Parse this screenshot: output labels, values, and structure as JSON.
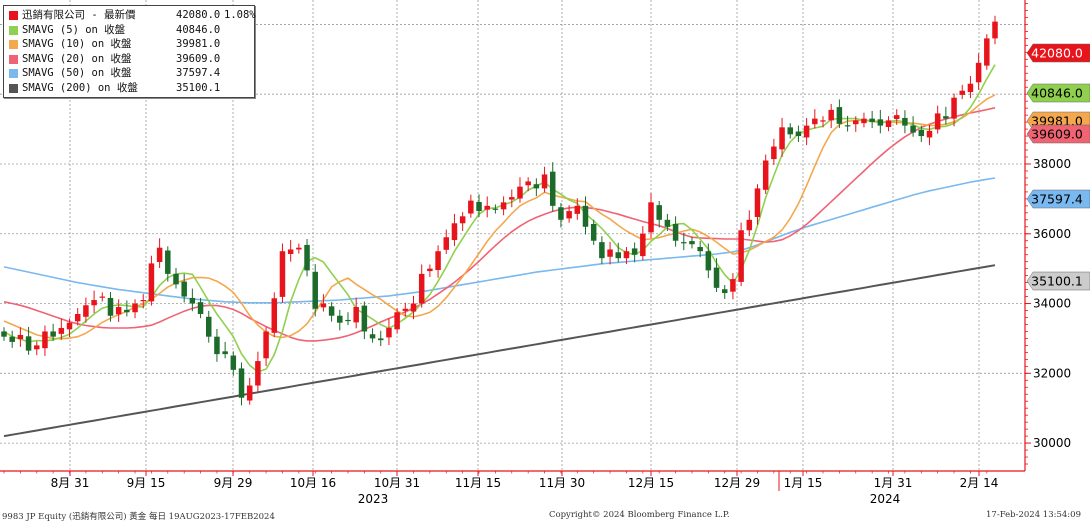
{
  "legend": {
    "title_name": "迅銷有限公司 - 最新價",
    "title_value": "42080.0",
    "title_change": "1.08%",
    "items": [
      {
        "name": "SMAVG (5)  on 收盤",
        "value": "40846.0",
        "color": "#8fd14f"
      },
      {
        "name": "SMAVG (10)  on 收盤",
        "value": "39981.0",
        "color": "#f4a84e"
      },
      {
        "name": "SMAVG (20)  on 收盤",
        "value": "39609.0",
        "color": "#f06373"
      },
      {
        "name": "SMAVG (50)  on 收盤",
        "value": "37597.4",
        "color": "#7ab8f0"
      },
      {
        "name": "SMAVG (200)  on 收盤",
        "value": "35100.1",
        "color": "#555555"
      }
    ]
  },
  "footer": {
    "left": "9983 JP Equity (迅銷有限公司) 黃金  每日 19AUG2023-17FEB2024",
    "center": "Copyright© 2024 Bloomberg Finance L.P.",
    "right": "17-Feb-2024  13:54:09"
  },
  "chart_data": {
    "type": "candlestick",
    "title": "",
    "x_tick_labels": [
      "8月 31",
      "9月 15",
      "9月 29",
      "10月 16",
      "10月 31",
      "11月 15",
      "11月 30",
      "12月 15",
      "12月 29",
      "1月 15",
      "1月 31",
      "2月 14"
    ],
    "year_labels": [
      "2023",
      "2024"
    ],
    "y_ticks": [
      30000,
      32000,
      34000,
      36000,
      38000
    ],
    "ylim": [
      29200,
      42700
    ],
    "y_axis_side": "right",
    "grid": true,
    "up_color": "#e8141c",
    "down_color": "#1c6b2a",
    "price_tags": [
      {
        "label": "42080.0",
        "value": 42080,
        "color": "#e8141c",
        "text_color": "#ffffff"
      },
      {
        "label": "40846.0",
        "value": 40846,
        "color": "#8fd14f",
        "text_color": "#000000"
      },
      {
        "label": "39981.0",
        "value": 39981,
        "color": "#f4a84e",
        "text_color": "#000000"
      },
      {
        "label": "39609.0",
        "value": 39609,
        "color": "#f06373",
        "text_color": "#000000"
      },
      {
        "label": "37597.4",
        "value": 37597.4,
        "color": "#7ab8f0",
        "text_color": "#000000"
      },
      {
        "label": "35100.1",
        "value": 35100.1,
        "color": "#cccccc",
        "text_color": "#000000"
      }
    ],
    "close": [
      33050,
      32900,
      33100,
      32650,
      32800,
      33200,
      33050,
      33300,
      33450,
      33700,
      33950,
      34100,
      34200,
      33650,
      33900,
      33750,
      34000,
      34100,
      35150,
      35600,
      34850,
      34550,
      34200,
      34000,
      33700,
      33050,
      32550,
      32550,
      32100,
      31300,
      31650,
      32350,
      33200,
      34150,
      35500,
      35550,
      35600,
      34950,
      33850,
      34000,
      33650,
      33450,
      33500,
      33900,
      33200,
      33000,
      32950,
      33300,
      33750,
      33850,
      34000,
      34850,
      35000,
      35500,
      35900,
      36300,
      36500,
      36950,
      36650,
      36800,
      36700,
      36900,
      37050,
      37350,
      37500,
      37300,
      37700,
      36800,
      36400,
      36650,
      36800,
      36200,
      35800,
      35300,
      35550,
      35300,
      35500,
      35400,
      36000,
      36900,
      36400,
      36200,
      35800,
      35750,
      35700,
      35500,
      34950,
      34450,
      34300,
      34700,
      36100,
      36400,
      37300,
      38100,
      38500,
      39050,
      38850,
      38800,
      39100,
      39300,
      39250,
      39550,
      39150,
      39100,
      39250,
      39300,
      39200,
      39100,
      39250,
      39400,
      39100,
      38900,
      38800,
      38950,
      39450,
      39300,
      39900,
      40100,
      40300,
      40900,
      41600,
      42080
    ],
    "sma_5": [
      33200,
      33050,
      32980,
      32900,
      32940,
      32930,
      32960,
      33030,
      33120,
      33300,
      33500,
      33700,
      33870,
      33930,
      33960,
      33940,
      33900,
      33910,
      34190,
      34520,
      34740,
      34850,
      34870,
      34840,
      34460,
      34060,
      33700,
      33380,
      33050,
      32560,
      32230,
      32040,
      32120,
      32540,
      33210,
      34060,
      34690,
      35210,
      35310,
      35190,
      34870,
      34560,
      34250,
      33850,
      33700,
      33550,
      33400,
      33290,
      33420,
      33580,
      33760,
      34000,
      34260,
      34640,
      35050,
      35500,
      35860,
      36230,
      36560,
      36730,
      36740,
      36830,
      36910,
      37050,
      37250,
      37370,
      37480,
      37280,
      37130,
      36970,
      36870,
      36570,
      36370,
      36150,
      35890,
      35600,
      35460,
      35400,
      35530,
      35780,
      35970,
      36200,
      36280,
      36290,
      36110,
      35840,
      35560,
      35160,
      34830,
      34580,
      34970,
      35530,
      36240,
      37040,
      37670,
      38270,
      38630,
      38870,
      38970,
      39030,
      39080,
      39280,
      39300,
      39300,
      39300,
      39250,
      39230,
      39180,
      39210,
      39250,
      39200,
      39120,
      39020,
      38990,
      39060,
      39080,
      39160,
      39340,
      39620,
      40000,
      40440,
      40846
    ],
    "sma_10": [
      33500,
      33400,
      33300,
      33200,
      33100,
      33050,
      33000,
      32990,
      33010,
      33050,
      33150,
      33300,
      33460,
      33580,
      33680,
      33780,
      33900,
      33990,
      34120,
      34290,
      34470,
      34590,
      34670,
      34740,
      34750,
      34730,
      34640,
      34500,
      34320,
      34010,
      33650,
      33380,
      33180,
      33060,
      33030,
      33080,
      33210,
      33420,
      33760,
      34110,
      34480,
      34630,
      34730,
      34550,
      34400,
      34250,
      34120,
      33950,
      33790,
      33650,
      33620,
      33670,
      33750,
      33920,
      34170,
      34470,
      34770,
      35100,
      35440,
      35780,
      36080,
      36320,
      36580,
      36800,
      36930,
      37030,
      37190,
      37110,
      37050,
      37000,
      36940,
      36920,
      36730,
      36560,
      36420,
      36240,
      36080,
      35950,
      35830,
      35850,
      35890,
      35960,
      36010,
      36080,
      36130,
      36050,
      35920,
      35760,
      35580,
      35420,
      35450,
      35530,
      35650,
      35780,
      35900,
      36110,
      36440,
      36860,
      37380,
      37940,
      38470,
      38900,
      39130,
      39230,
      39240,
      39260,
      39240,
      39210,
      39200,
      39190,
      39180,
      39170,
      39140,
      39100,
      39110,
      39140,
      39210,
      39320,
      39480,
      39680,
      39860,
      39981
    ],
    "sma_20": [
      34050,
      34000,
      33950,
      33880,
      33800,
      33720,
      33640,
      33560,
      33480,
      33420,
      33370,
      33340,
      33310,
      33300,
      33300,
      33300,
      33310,
      33340,
      33380,
      33470,
      33580,
      33680,
      33780,
      33860,
      33920,
      33950,
      33940,
      33900,
      33830,
      33720,
      33580,
      33460,
      33340,
      33230,
      33130,
      33030,
      32960,
      32930,
      32930,
      32950,
      32980,
      33020,
      33080,
      33160,
      33260,
      33360,
      33470,
      33570,
      33660,
      33760,
      33870,
      33990,
      34120,
      34280,
      34440,
      34610,
      34800,
      35000,
      35210,
      35440,
      35660,
      35870,
      36060,
      36220,
      36360,
      36470,
      36560,
      36640,
      36700,
      36740,
      36760,
      36750,
      36720,
      36680,
      36620,
      36560,
      36490,
      36420,
      36350,
      36290,
      36230,
      36150,
      36060,
      35970,
      35900,
      35880,
      35870,
      35860,
      35850,
      35850,
      35850,
      35820,
      35790,
      35760,
      35780,
      35830,
      35940,
      36090,
      36270,
      36480,
      36700,
      36920,
      37140,
      37360,
      37580,
      37800,
      38020,
      38230,
      38430,
      38610,
      38780,
      38920,
      39050,
      39140,
      39220,
      39290,
      39350,
      39410,
      39460,
      39510,
      39560,
      39609
    ],
    "sma_50": [
      35050,
      35000,
      34950,
      34900,
      34850,
      34800,
      34750,
      34700,
      34650,
      34600,
      34560,
      34520,
      34480,
      34440,
      34400,
      34370,
      34340,
      34310,
      34280,
      34250,
      34220,
      34190,
      34160,
      34130,
      34110,
      34090,
      34070,
      34050,
      34040,
      34030,
      34020,
      34020,
      34020,
      34020,
      34030,
      34040,
      34050,
      34060,
      34070,
      34080,
      34090,
      34100,
      34120,
      34140,
      34160,
      34180,
      34200,
      34220,
      34250,
      34280,
      34310,
      34340,
      34380,
      34420,
      34460,
      34500,
      34540,
      34580,
      34620,
      34660,
      34700,
      34740,
      34780,
      34820,
      34860,
      34900,
      34930,
      34960,
      34990,
      35020,
      35050,
      35080,
      35110,
      35140,
      35160,
      35180,
      35200,
      35220,
      35240,
      35260,
      35280,
      35300,
      35320,
      35340,
      35360,
      35380,
      35400,
      35420,
      35450,
      35480,
      35530,
      35600,
      35680,
      35770,
      35860,
      35950,
      36040,
      36120,
      36200,
      36270,
      36340,
      36410,
      36480,
      36550,
      36620,
      36690,
      36760,
      36830,
      36900,
      36970,
      37040,
      37110,
      37170,
      37230,
      37280,
      37330,
      37380,
      37430,
      37480,
      37520,
      37560,
      37597.4
    ]
  }
}
